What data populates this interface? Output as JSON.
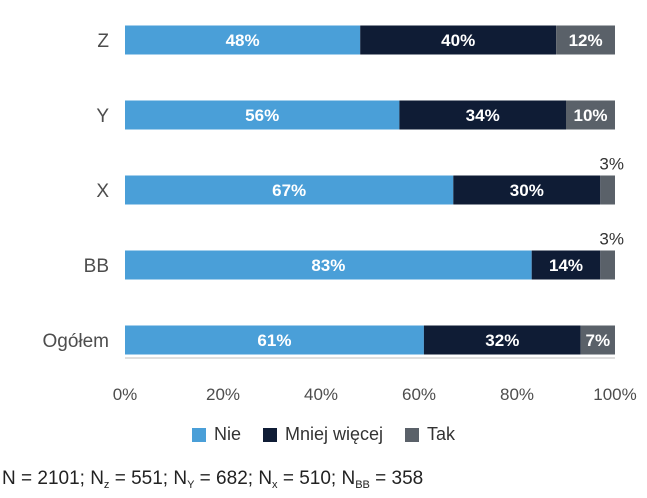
{
  "chart_data": {
    "type": "bar",
    "orientation": "horizontal",
    "stacked": true,
    "categories": [
      "Z",
      "Y",
      "X",
      "BB",
      "Ogółem"
    ],
    "series": [
      {
        "name": "Nie",
        "values": [
          48,
          56,
          67,
          83,
          61
        ],
        "labels": [
          "48%",
          "56%",
          "67%",
          "83%",
          "61%"
        ]
      },
      {
        "name": "Mniej więcej",
        "values": [
          40,
          34,
          30,
          14,
          32
        ],
        "labels": [
          "40%",
          "34%",
          "30%",
          "14%",
          "32%"
        ]
      },
      {
        "name": "Tak",
        "values": [
          12,
          10,
          3,
          3,
          7
        ],
        "labels": [
          "12%",
          "10%",
          "3%",
          "3%",
          "7%"
        ]
      }
    ],
    "xlim": [
      0,
      100
    ],
    "xticks": [
      "0%",
      "20%",
      "40%",
      "60%",
      "80%",
      "100%"
    ],
    "grid": false,
    "legend_position": "bottom",
    "colors": [
      "#4a9fd8",
      "#0f1c35",
      "#5a6169"
    ]
  },
  "footnote": {
    "n_total": "N = 2101; N",
    "sub_z": "z",
    "val_z": " = 551; N",
    "sub_y": "Y",
    "val_y": " = 682; N",
    "sub_x": "x",
    "val_x": " = 510; N",
    "sub_bb": "BB",
    "val_bb": " = 358"
  }
}
